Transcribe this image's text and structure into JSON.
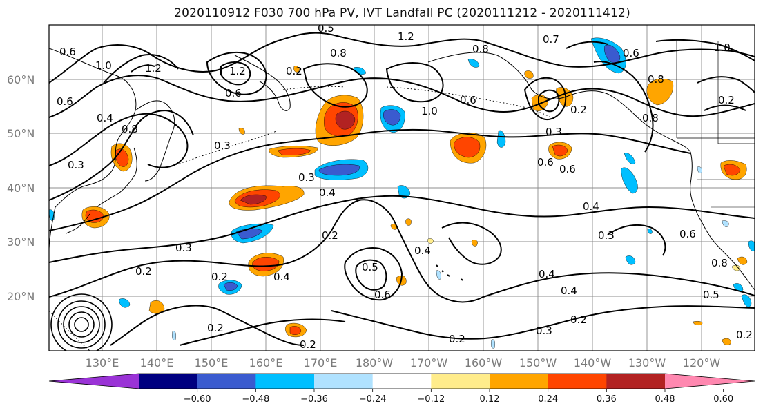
{
  "title": "2020110912 F030 700 hPa PV, IVT Landfall PC (2020111212 - 2020111412)",
  "lat_labels": [
    "60°N",
    "50°N",
    "40°N",
    "30°N",
    "20°N"
  ],
  "lon_labels": [
    "130°E",
    "140°E",
    "150°E",
    "160°E",
    "170°E",
    "180°W",
    "170°W",
    "160°W",
    "150°W",
    "140°W",
    "130°W",
    "120°W"
  ],
  "colorbar": {
    "colors": [
      "#9a33d6",
      "#000080",
      "#3a5bcf",
      "#00bfff",
      "#b0e2ff",
      "#ffffff",
      "#ffec8b",
      "#ffa500",
      "#ff4500",
      "#b22222",
      "#ff88b0"
    ],
    "ticks": [
      "−0.60",
      "−0.48",
      "−0.36",
      "−0.24",
      "−0.12",
      "0.12",
      "0.24",
      "0.36",
      "0.48",
      "0.60"
    ]
  },
  "contour_labels": [
    "0.6",
    "1.0",
    "1.2",
    "0.6",
    "0.4",
    "0.8",
    "0.3",
    "0.3",
    "0.3",
    "0.2",
    "0.4",
    "0.2",
    "0.3",
    "0.2",
    "0.2",
    "0.4",
    "0.2",
    "0.6",
    "0.5",
    "0.4",
    "0.2",
    "0.3",
    "0.4",
    "0.2",
    "0.4",
    "0.3",
    "0.4",
    "0.6",
    "0.6",
    "0.3",
    "0.2",
    "0.8",
    "0.7",
    "1.0",
    "0.6",
    "0.8",
    "1.2",
    "0.6",
    "0.8",
    "0.5",
    "0.2",
    "0.6",
    "0.8",
    "0.2",
    "1.2",
    "0.8",
    "0.5",
    "0.6",
    "0.2",
    "1.0"
  ]
}
